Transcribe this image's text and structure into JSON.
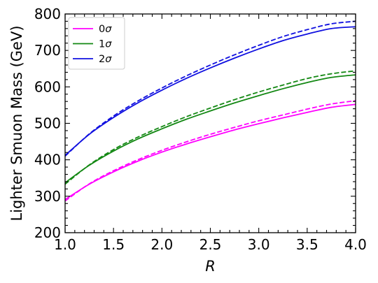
{
  "chart_data": {
    "type": "line",
    "xlabel": "R",
    "ylabel": "Lighter Smuon Mass (GeV)",
    "xlim": [
      1.0,
      4.0
    ],
    "ylim": [
      200,
      800
    ],
    "x_ticks": [
      "1.0",
      "1.5",
      "2.0",
      "2.5",
      "3.0",
      "3.5",
      "4.0"
    ],
    "y_ticks": [
      "200",
      "300",
      "400",
      "500",
      "600",
      "700",
      "800"
    ],
    "x_tick_values": [
      1.0,
      1.5,
      2.0,
      2.5,
      3.0,
      3.5,
      4.0
    ],
    "y_tick_values": [
      200,
      300,
      400,
      500,
      600,
      700,
      800
    ],
    "grid": false,
    "legend": {
      "placement": "top-left",
      "entries": [
        {
          "prefix": "0",
          "symbol": "σ",
          "color": "#ff00ff"
        },
        {
          "prefix": "1",
          "symbol": "σ",
          "color": "#138813"
        },
        {
          "prefix": "2",
          "symbol": "σ",
          "color": "#1010e0"
        }
      ]
    },
    "x": [
      1.0,
      1.25,
      1.5,
      1.75,
      2.0,
      2.25,
      2.5,
      2.75,
      3.0,
      3.25,
      3.5,
      3.75,
      4.0
    ],
    "series": [
      {
        "color": "#ff00ff",
        "style": "solid",
        "values": [
          291,
          333,
          367,
          396,
          421,
          443,
          463,
          482,
          499,
          515,
          530,
          544,
          552
        ]
      },
      {
        "color": "#ff00ff",
        "style": "dashed",
        "values": [
          287,
          334,
          370,
          400,
          426,
          449,
          470,
          489,
          507,
          523,
          539,
          553,
          562
        ]
      },
      {
        "color": "#138813",
        "style": "solid",
        "values": [
          337,
          385,
          424,
          457,
          485,
          511,
          534,
          556,
          576,
          595,
          612,
          626,
          633
        ]
      },
      {
        "color": "#138813",
        "style": "dashed",
        "values": [
          333,
          386,
          428,
          462,
          491,
          518,
          542,
          565,
          586,
          605,
          623,
          636,
          644
        ]
      },
      {
        "color": "#1010e0",
        "style": "solid",
        "values": [
          412,
          470,
          516,
          556,
          591,
          623,
          652,
          679,
          704,
          727,
          745,
          760,
          765
        ]
      },
      {
        "color": "#1010e0",
        "style": "dashed",
        "values": [
          410,
          471,
          520,
          561,
          597,
          630,
          660,
          688,
          714,
          738,
          757,
          773,
          780
        ]
      }
    ]
  }
}
